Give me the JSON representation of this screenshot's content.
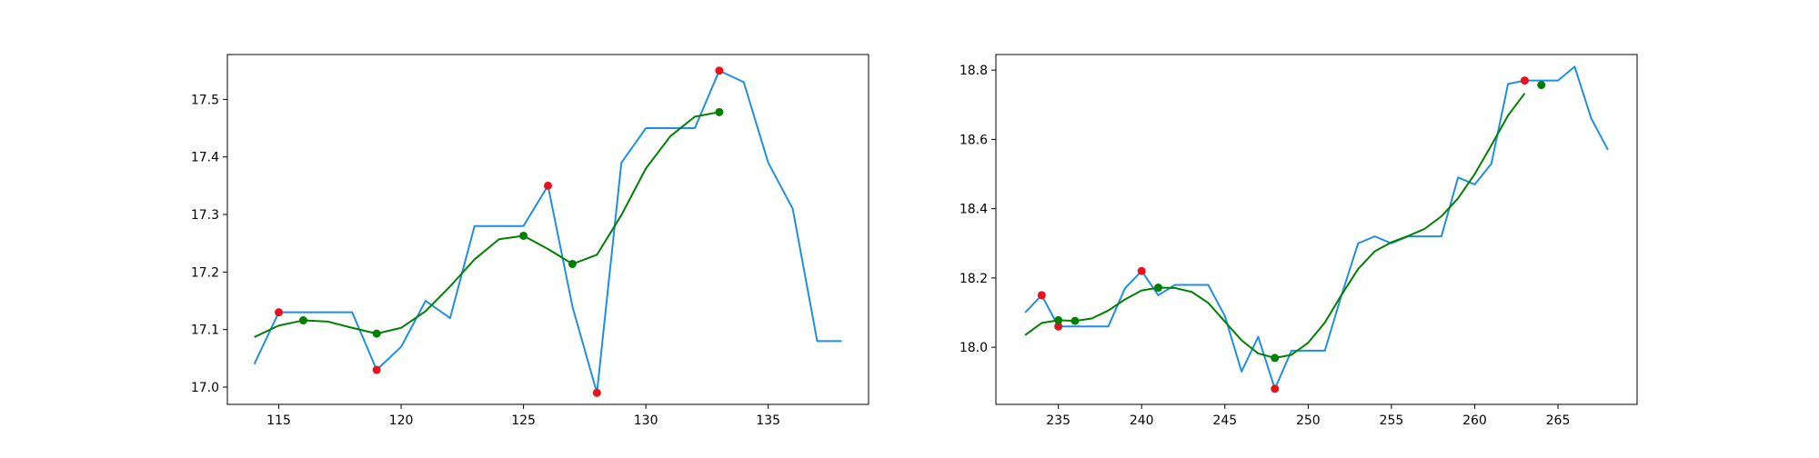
{
  "colors": {
    "raw_line": "#1f8fe6",
    "smooth_line": "#008000",
    "red_marker": "#e8121c",
    "green_marker": "#008000",
    "axes": "#000000"
  },
  "chart_data": [
    {
      "type": "line",
      "title": "",
      "xlabel": "",
      "ylabel": "",
      "grid": false,
      "xlim": [
        112.9,
        139.1
      ],
      "ylim": [
        16.97,
        17.578
      ],
      "xticks": [
        115,
        120,
        125,
        130,
        135
      ],
      "yticks": [
        17.0,
        17.1,
        17.2,
        17.3,
        17.4,
        17.5
      ],
      "xtick_labels": [
        "115",
        "120",
        "125",
        "130",
        "135"
      ],
      "ytick_labels": [
        "17.0",
        "17.1",
        "17.2",
        "17.3",
        "17.4",
        "17.5"
      ],
      "series": [
        {
          "style": "line",
          "color_key": "raw_line",
          "x": [
            114,
            115,
            116,
            117,
            118,
            119,
            120,
            121,
            122,
            123,
            124,
            125,
            126,
            127,
            128,
            129,
            130,
            131,
            132,
            133,
            134,
            135,
            136,
            137,
            138
          ],
          "y": [
            17.04,
            17.13,
            17.13,
            17.13,
            17.13,
            17.03,
            17.07,
            17.15,
            17.12,
            17.28,
            17.28,
            17.28,
            17.35,
            17.14,
            16.99,
            17.39,
            17.45,
            17.45,
            17.45,
            17.55,
            17.53,
            17.39,
            17.31,
            17.08,
            17.08
          ]
        },
        {
          "style": "line",
          "color_key": "smooth_line",
          "x": [
            114,
            115,
            116,
            117,
            118,
            119,
            120,
            121,
            122,
            123,
            124,
            125,
            126,
            127,
            128,
            129,
            130,
            131,
            132,
            133
          ],
          "y": [
            17.087,
            17.107,
            17.116,
            17.114,
            17.103,
            17.093,
            17.103,
            17.132,
            17.175,
            17.222,
            17.257,
            17.263,
            17.24,
            17.214,
            17.23,
            17.299,
            17.38,
            17.436,
            17.47,
            17.478
          ]
        },
        {
          "style": "scatter",
          "color_key": "red_marker",
          "x": [
            115,
            119,
            126,
            128,
            133
          ],
          "y": [
            17.13,
            17.03,
            17.35,
            16.99,
            17.55
          ]
        },
        {
          "style": "scatter",
          "color_key": "green_marker",
          "x": [
            116,
            119,
            125,
            127,
            133
          ],
          "y": [
            17.116,
            17.093,
            17.263,
            17.214,
            17.478
          ]
        }
      ]
    },
    {
      "type": "line",
      "title": "",
      "xlabel": "",
      "ylabel": "",
      "grid": false,
      "xlim": [
        231.25,
        269.75
      ],
      "ylim": [
        17.835,
        18.845
      ],
      "xticks": [
        235,
        240,
        245,
        250,
        255,
        260,
        265
      ],
      "yticks": [
        18.0,
        18.2,
        18.4,
        18.6,
        18.8
      ],
      "xtick_labels": [
        "235",
        "240",
        "245",
        "250",
        "255",
        "260",
        "265"
      ],
      "ytick_labels": [
        "18.0",
        "18.2",
        "18.4",
        "18.6",
        "18.8"
      ],
      "series": [
        {
          "style": "line",
          "color_key": "raw_line",
          "x": [
            233,
            234,
            235,
            236,
            237,
            238,
            239,
            240,
            241,
            242,
            243,
            244,
            245,
            246,
            247,
            248,
            249,
            250,
            251,
            252,
            253,
            254,
            255,
            256,
            257,
            258,
            259,
            260,
            261,
            262,
            263,
            264,
            265,
            266,
            267,
            268
          ],
          "y": [
            18.1,
            18.15,
            18.06,
            18.06,
            18.06,
            18.06,
            18.17,
            18.22,
            18.15,
            18.18,
            18.18,
            18.18,
            18.09,
            17.93,
            18.03,
            17.88,
            17.99,
            17.99,
            17.99,
            18.15,
            18.3,
            18.32,
            18.3,
            18.32,
            18.32,
            18.32,
            18.49,
            18.47,
            18.53,
            18.76,
            18.77,
            18.77,
            18.77,
            18.81,
            18.66,
            18.57
          ]
        },
        {
          "style": "line",
          "color_key": "smooth_line",
          "x": [
            233,
            234,
            235,
            236,
            237,
            238,
            239,
            240,
            241,
            242,
            243,
            244,
            245,
            246,
            247,
            248,
            249,
            250,
            251,
            252,
            253,
            254,
            255,
            256,
            257,
            258,
            259,
            260,
            261,
            262,
            263
          ],
          "y": [
            18.035,
            18.07,
            18.078,
            18.076,
            18.083,
            18.106,
            18.138,
            18.164,
            18.172,
            18.171,
            18.16,
            18.128,
            18.074,
            18.02,
            17.982,
            17.969,
            17.978,
            18.013,
            18.071,
            18.151,
            18.226,
            18.277,
            18.303,
            18.321,
            18.342,
            18.378,
            18.43,
            18.5,
            18.583,
            18.669,
            18.733
          ]
        },
        {
          "style": "scatter",
          "color_key": "red_marker",
          "x": [
            234,
            235,
            240,
            248,
            263
          ],
          "y": [
            18.15,
            18.06,
            18.22,
            17.88,
            18.77
          ]
        },
        {
          "style": "scatter",
          "color_key": "green_marker",
          "x": [
            235,
            236,
            241,
            248,
            264
          ],
          "y": [
            18.078,
            18.076,
            18.172,
            17.969,
            18.757
          ]
        }
      ]
    }
  ]
}
